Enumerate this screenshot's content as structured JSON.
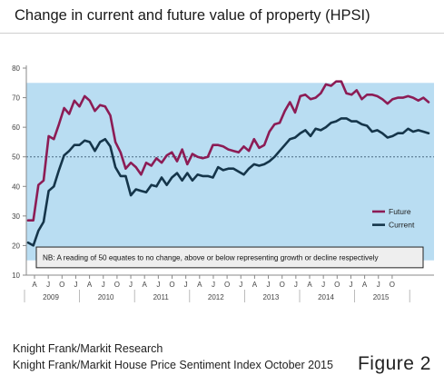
{
  "title": "Change in current and future value of property (HPSI)",
  "source_lines": [
    "Knight Frank/Markit Research",
    "Knight Frank/Markit House Price Sentiment Index October 2015"
  ],
  "figure_label": "Figure 2",
  "colors": {
    "background_band": "#b9ddf2",
    "future": "#8c1c55",
    "current": "#15354a",
    "reference_line": "#4a6a82",
    "axis": "#888888"
  },
  "chart_data": {
    "type": "line",
    "title": "",
    "ylim": [
      10,
      80
    ],
    "yticks": [
      10,
      20,
      30,
      40,
      50,
      60,
      70,
      80
    ],
    "reference_value": 50,
    "shaded_band": [
      15,
      75
    ],
    "x_month_labels": [
      "A",
      "J",
      "O",
      "J",
      "A",
      "J",
      "O",
      "J",
      "A",
      "J",
      "O",
      "J",
      "A",
      "J",
      "O",
      "J",
      "A",
      "J",
      "O",
      "J",
      "A",
      "J",
      "O",
      "J",
      "A",
      "J",
      "O"
    ],
    "year_labels": [
      "2009",
      "2010",
      "2011",
      "2012",
      "2013",
      "2014",
      "2015"
    ],
    "x_start": "2009-03",
    "x_end": "2015-10",
    "series": [
      {
        "name": "Future",
        "values": [
          28.5,
          28.5,
          40.5,
          42,
          57,
          56,
          61,
          66.5,
          64.5,
          69,
          67,
          70.5,
          69,
          65.5,
          67.5,
          67,
          64,
          55,
          51.5,
          46,
          48,
          46.5,
          44,
          48,
          47,
          49.5,
          48,
          50.5,
          51.5,
          48.5,
          52.5,
          47.5,
          51,
          50,
          49.5,
          50,
          54,
          54,
          53.5,
          52.5,
          52,
          51.5,
          53.5,
          52,
          56,
          53,
          54,
          58.5,
          61,
          61.5,
          65.5,
          68.5,
          65,
          70.5,
          71,
          69.5,
          70,
          71.5,
          74.5,
          74,
          75.5,
          75.5,
          71.5,
          71,
          72.5,
          69.5,
          71,
          71,
          70.5,
          69.5,
          68,
          69.5,
          70,
          70,
          70.5,
          70,
          69,
          70,
          68.5
        ]
      },
      {
        "name": "Current",
        "values": [
          21,
          20,
          25,
          28,
          38.5,
          40,
          45.5,
          50.5,
          52,
          54,
          54,
          55.5,
          55,
          52,
          55,
          56,
          53.5,
          46.5,
          43.5,
          43.5,
          37,
          39,
          38.5,
          38,
          40.5,
          40,
          43,
          40.5,
          43,
          44.5,
          42,
          44.5,
          42,
          44,
          43.5,
          43.5,
          43,
          46.5,
          45.5,
          46,
          46,
          45,
          44,
          46,
          47.5,
          47,
          47.5,
          48.5,
          50,
          52,
          54,
          56,
          56.5,
          58,
          59,
          57,
          59.5,
          59,
          60,
          61.5,
          62,
          63,
          63,
          62,
          62,
          61,
          60.5,
          58.5,
          59,
          58,
          56.5,
          57,
          58,
          58,
          59.5,
          58.5,
          59,
          58.5,
          58
        ]
      }
    ],
    "legend": [
      "Future",
      "Current"
    ],
    "legend_position": "right",
    "annotation": "NB: A reading of 50 equates to no change, above or below representing growth or decline respectively"
  }
}
